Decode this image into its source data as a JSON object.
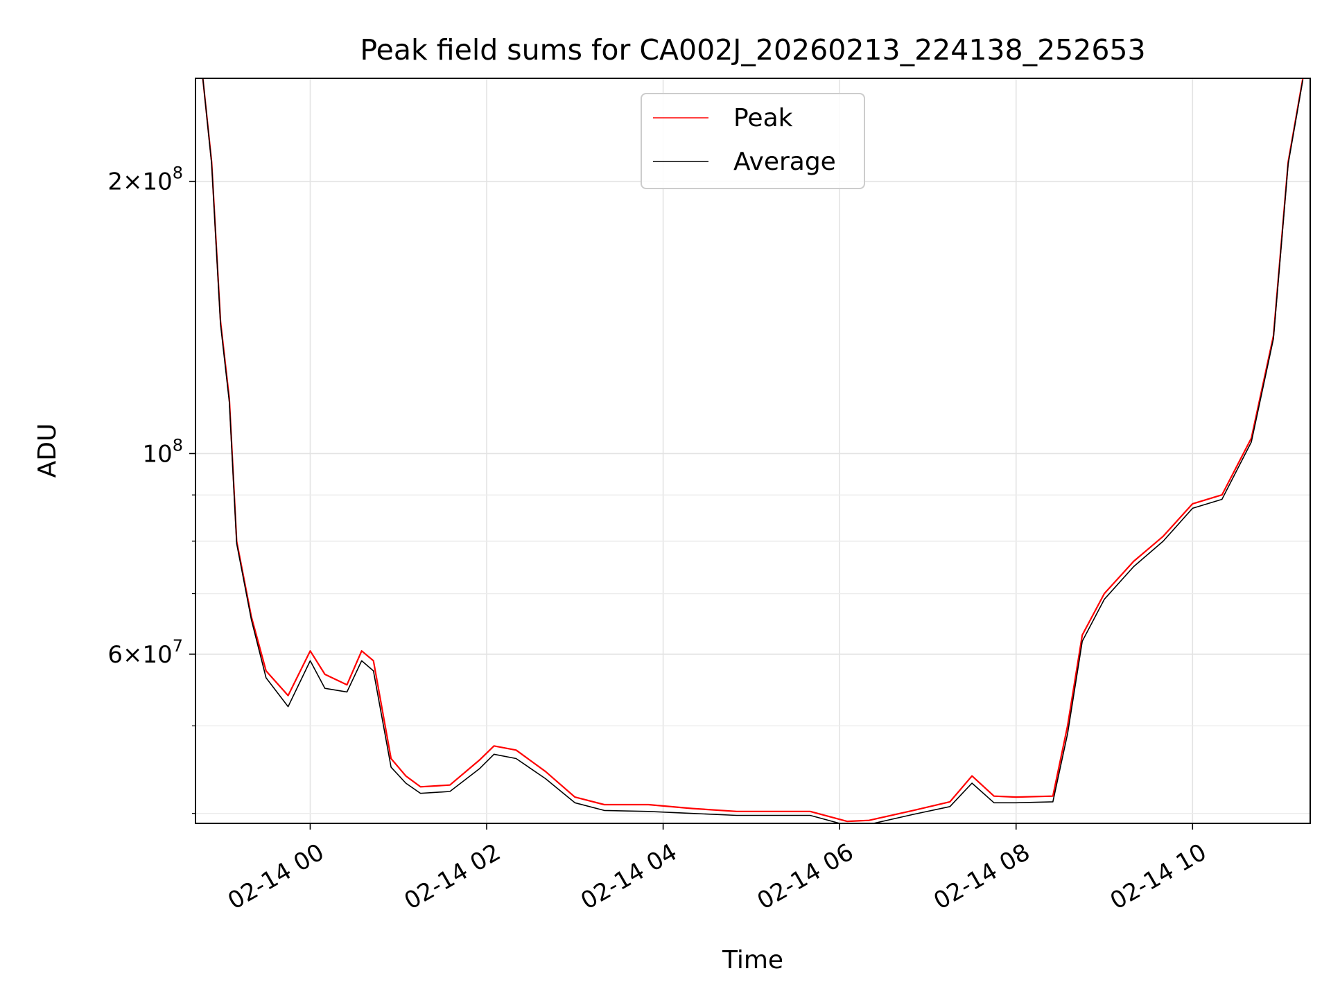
{
  "chart_data": {
    "type": "line",
    "title": "Peak field sums for CA002J_20260213_224138_252653",
    "xlabel": "Time",
    "ylabel": "ADU",
    "yscale": "log",
    "xlim": [
      "2026-02-13 22:42",
      "2026-02-14 11:20"
    ],
    "ylim": [
      39000000,
      260000000
    ],
    "grid": true,
    "legend_position": "top-center",
    "x_ticks": [
      "02-14 00",
      "02-14 02",
      "02-14 04",
      "02-14 06",
      "02-14 08",
      "02-14 10"
    ],
    "y_ticks": [
      {
        "value": 60000000,
        "base": "6",
        "exp": "7"
      },
      {
        "value": 100000000,
        "base": "10",
        "exp": "8"
      },
      {
        "value": 200000000,
        "base": "2",
        "exp": "8"
      }
    ],
    "series": [
      {
        "name": "Peak",
        "color": "#ff0000",
        "x": [
          "2026-02-13 22:47",
          "2026-02-13 22:53",
          "2026-02-13 22:59",
          "2026-02-13 23:05",
          "2026-02-13 23:10",
          "2026-02-13 23:20",
          "2026-02-13 23:30",
          "2026-02-13 23:45",
          "2026-02-14 00:00",
          "2026-02-14 00:10",
          "2026-02-14 00:25",
          "2026-02-14 00:35",
          "2026-02-14 00:43",
          "2026-02-14 00:55",
          "2026-02-14 01:05",
          "2026-02-14 01:15",
          "2026-02-14 01:35",
          "2026-02-14 01:55",
          "2026-02-14 02:05",
          "2026-02-14 02:20",
          "2026-02-14 02:40",
          "2026-02-14 03:00",
          "2026-02-14 03:20",
          "2026-02-14 03:50",
          "2026-02-14 04:20",
          "2026-02-14 04:50",
          "2026-02-14 05:20",
          "2026-02-14 05:40",
          "2026-02-14 06:05",
          "2026-02-14 06:20",
          "2026-02-14 06:50",
          "2026-02-14 07:15",
          "2026-02-14 07:30",
          "2026-02-14 07:45",
          "2026-02-14 08:00",
          "2026-02-14 08:25",
          "2026-02-14 08:35",
          "2026-02-14 08:45",
          "2026-02-14 09:00",
          "2026-02-14 09:20",
          "2026-02-14 09:40",
          "2026-02-14 10:00",
          "2026-02-14 10:20",
          "2026-02-14 10:40",
          "2026-02-14 10:55",
          "2026-02-14 11:05",
          "2026-02-14 11:15"
        ],
        "y": [
          260000000,
          210000000,
          140000000,
          115000000,
          80000000,
          66000000,
          57500000,
          54000000,
          60500000,
          57000000,
          55500000,
          60500000,
          59000000,
          46000000,
          44000000,
          42800000,
          43000000,
          45800000,
          47500000,
          47000000,
          44500000,
          41700000,
          40900000,
          40900000,
          40500000,
          40200000,
          40200000,
          40200000,
          39200000,
          39300000,
          40300000,
          41200000,
          44000000,
          41800000,
          41700000,
          41800000,
          50000000,
          63000000,
          70000000,
          76000000,
          81000000,
          88000000,
          90000000,
          104000000,
          135000000,
          210000000,
          260000000
        ]
      },
      {
        "name": "Average",
        "color": "#000000",
        "x": [
          "2026-02-13 22:47",
          "2026-02-13 22:53",
          "2026-02-13 22:59",
          "2026-02-13 23:05",
          "2026-02-13 23:10",
          "2026-02-13 23:20",
          "2026-02-13 23:30",
          "2026-02-13 23:45",
          "2026-02-14 00:00",
          "2026-02-14 00:10",
          "2026-02-14 00:25",
          "2026-02-14 00:35",
          "2026-02-14 00:43",
          "2026-02-14 00:55",
          "2026-02-14 01:05",
          "2026-02-14 01:15",
          "2026-02-14 01:35",
          "2026-02-14 01:55",
          "2026-02-14 02:05",
          "2026-02-14 02:20",
          "2026-02-14 02:40",
          "2026-02-14 03:00",
          "2026-02-14 03:20",
          "2026-02-14 03:50",
          "2026-02-14 04:20",
          "2026-02-14 04:50",
          "2026-02-14 05:20",
          "2026-02-14 05:40",
          "2026-02-14 06:05",
          "2026-02-14 06:20",
          "2026-02-14 06:50",
          "2026-02-14 07:15",
          "2026-02-14 07:30",
          "2026-02-14 07:45",
          "2026-02-14 08:00",
          "2026-02-14 08:25",
          "2026-02-14 08:35",
          "2026-02-14 08:45",
          "2026-02-14 09:00",
          "2026-02-14 09:20",
          "2026-02-14 09:40",
          "2026-02-14 10:00",
          "2026-02-14 10:20",
          "2026-02-14 10:40",
          "2026-02-14 10:55",
          "2026-02-14 11:05",
          "2026-02-14 11:15"
        ],
        "y": [
          260000000,
          209000000,
          139000000,
          114000000,
          79500000,
          65500000,
          56500000,
          52500000,
          59000000,
          55000000,
          54500000,
          59000000,
          57500000,
          45000000,
          43200000,
          42100000,
          42300000,
          44800000,
          46500000,
          46000000,
          43700000,
          41100000,
          40300000,
          40200000,
          40000000,
          39800000,
          39800000,
          39800000,
          38800000,
          38900000,
          39900000,
          40700000,
          43200000,
          41100000,
          41100000,
          41200000,
          49000000,
          62000000,
          69000000,
          75000000,
          80000000,
          87000000,
          89000000,
          103000000,
          134000000,
          209000000,
          259000000
        ]
      }
    ]
  }
}
